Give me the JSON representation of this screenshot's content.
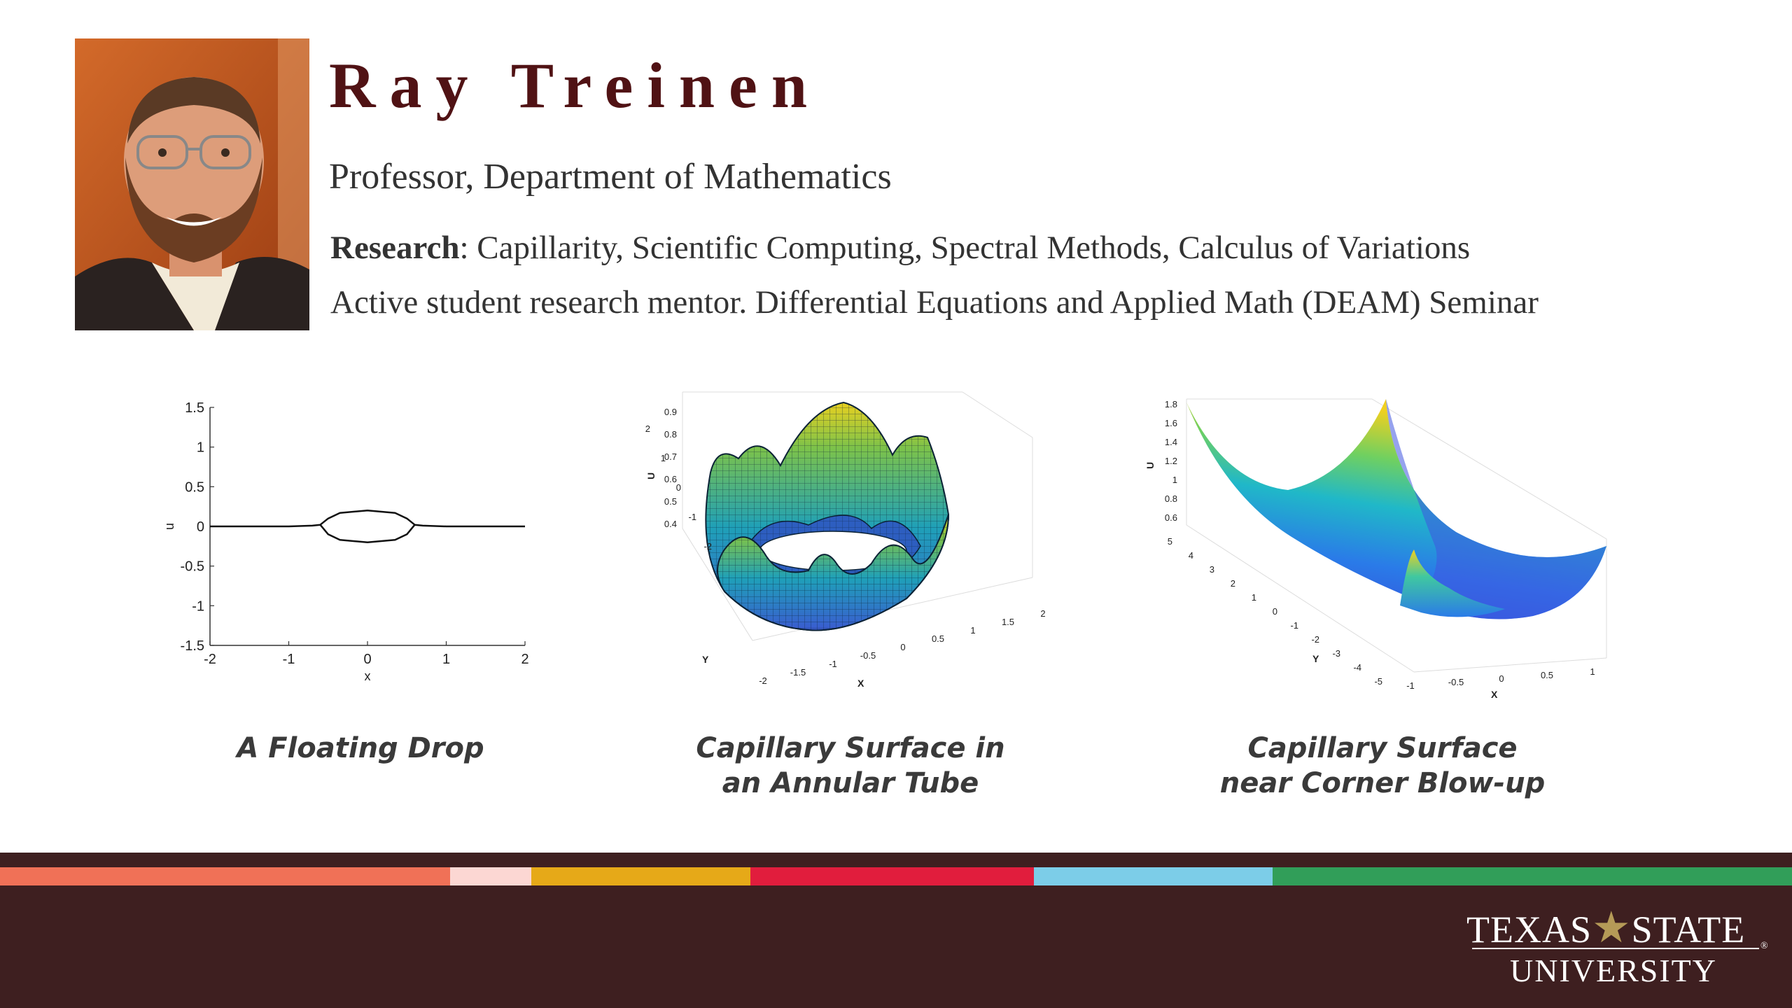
{
  "header": {
    "name": "Ray Treinen",
    "title": "Professor, Department of Mathematics",
    "research_label": "Research",
    "research_text": ": Capillarity, Scientific Computing, Spectral Methods, Calculus of Variations",
    "mentor_text": "Active student research mentor. Differential Equations and Applied Math (DEAM) Seminar"
  },
  "figures": [
    {
      "caption_lines": [
        "A Floating Drop"
      ],
      "chart_data": {
        "type": "line",
        "xlabel": "x",
        "ylabel": "u",
        "xlim": [
          -2,
          2
        ],
        "ylim": [
          -1.5,
          1.5
        ],
        "x_ticks": [
          "-2",
          "-1",
          "0",
          "1",
          "2"
        ],
        "y_ticks": [
          "1.5",
          "1",
          "0.5",
          "0",
          "-0.5",
          "-1",
          "-1.5"
        ],
        "series": [
          {
            "x": [
              -2,
              -1,
              -0.7,
              -0.6,
              -0.5,
              -0.35,
              0,
              0.35,
              0.5,
              0.6,
              0.7,
              1,
              2
            ],
            "y": [
              0,
              0,
              0.01,
              0.02,
              0.1,
              0.17,
              0.2,
              0.17,
              0.1,
              0.02,
              0.01,
              0,
              0
            ]
          },
          {
            "x": [
              -0.6,
              -0.5,
              -0.35,
              0,
              0.35,
              0.5,
              0.6
            ],
            "y": [
              0.02,
              -0.1,
              -0.17,
              -0.2,
              -0.17,
              -0.1,
              0.02
            ]
          }
        ]
      }
    },
    {
      "caption_lines": [
        "Capillary Surface in",
        "an Annular Tube"
      ],
      "chart_data": {
        "type": "surface",
        "xlabel": "X",
        "ylabel": "Y",
        "zlabel": "U",
        "x_ticks": [
          "-2",
          "-1.5",
          "-1",
          "-0.5",
          "0",
          "0.5",
          "1",
          "1.5",
          "2"
        ],
        "y_ticks": [
          "-2",
          "-1",
          "0",
          "1",
          "2"
        ],
        "z_ticks": [
          "0.9",
          "0.8",
          "0.7",
          "0.6",
          "0.5",
          "0.4"
        ]
      }
    },
    {
      "caption_lines": [
        "Capillary Surface",
        "near Corner Blow-up"
      ],
      "chart_data": {
        "type": "surface",
        "xlabel": "X",
        "ylabel": "Y",
        "zlabel": "U",
        "x_ticks": [
          "-1",
          "-0.5",
          "0",
          "0.5",
          "1"
        ],
        "y_ticks": [
          "5",
          "4",
          "3",
          "2",
          "1",
          "0",
          "-1",
          "-2",
          "-3",
          "-4",
          "-5"
        ],
        "z_ticks": [
          "1.8",
          "1.6",
          "1.4",
          "1.2",
          "1",
          "0.8",
          "0.6"
        ]
      }
    }
  ],
  "footer": {
    "stripe_colors": [
      "#f07157",
      "#fcd7d3",
      "#e6a918",
      "#e11d3d",
      "#7ccde8",
      "#319e59"
    ],
    "logo_top": "TEXAS★STATE",
    "logo_left": "TEXAS",
    "logo_right": "STATE",
    "logo_bottom": "UNIVERSITY",
    "logo_reg": "®"
  }
}
